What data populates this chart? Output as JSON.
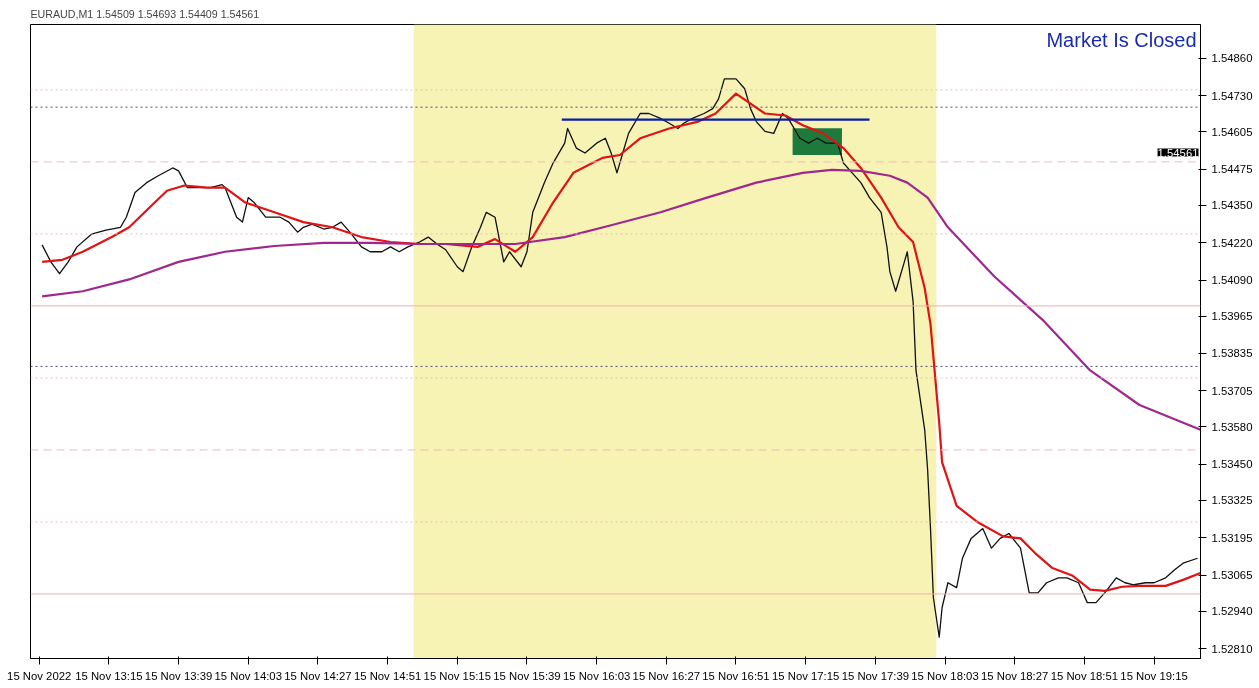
{
  "chart_data": {
    "type": "line",
    "title": "EURAUD,M1  1.54509 1.54693 1.54409 1.54561",
    "xlim": [
      "2022-11-15T12:48",
      "2022-11-15T19:31"
    ],
    "ylim": [
      1.52776,
      1.54977
    ],
    "xticks": [
      {
        "value": "2022-11-15T12:51",
        "label": "15 Nov 2022"
      },
      {
        "value": "2022-11-15T13:15",
        "label": "15 Nov 13:15"
      },
      {
        "value": "2022-11-15T13:39",
        "label": "15 Nov 13:39"
      },
      {
        "value": "2022-11-15T14:03",
        "label": "15 Nov 14:03"
      },
      {
        "value": "2022-11-15T14:27",
        "label": "15 Nov 14:27"
      },
      {
        "value": "2022-11-15T14:51",
        "label": "15 Nov 14:51"
      },
      {
        "value": "2022-11-15T15:15",
        "label": "15 Nov 15:15"
      },
      {
        "value": "2022-11-15T15:39",
        "label": "15 Nov 15:39"
      },
      {
        "value": "2022-11-15T16:03",
        "label": "15 Nov 16:03"
      },
      {
        "value": "2022-11-15T16:27",
        "label": "15 Nov 16:27"
      },
      {
        "value": "2022-11-15T16:51",
        "label": "15 Nov 16:51"
      },
      {
        "value": "2022-11-15T17:15",
        "label": "15 Nov 17:15"
      },
      {
        "value": "2022-11-15T17:39",
        "label": "15 Nov 17:39"
      },
      {
        "value": "2022-11-15T18:03",
        "label": "15 Nov 18:03"
      },
      {
        "value": "2022-11-15T18:27",
        "label": "15 Nov 18:27"
      },
      {
        "value": "2022-11-15T18:51",
        "label": "15 Nov 18:51"
      },
      {
        "value": "2022-11-15T19:15",
        "label": "15 Nov 19:15"
      }
    ],
    "yticks": [
      {
        "value": 1.5486,
        "label": "1.54860"
      },
      {
        "value": 1.5473,
        "label": "1.54730"
      },
      {
        "value": 1.54605,
        "label": "1.54605"
      },
      {
        "value": 1.54475,
        "label": "1.54475"
      },
      {
        "value": 1.5435,
        "label": "1.54350"
      },
      {
        "value": 1.5422,
        "label": "1.54220"
      },
      {
        "value": 1.5409,
        "label": "1.54090"
      },
      {
        "value": 1.53965,
        "label": "1.53965"
      },
      {
        "value": 1.53835,
        "label": "1.53835"
      },
      {
        "value": 1.53705,
        "label": "1.53705"
      },
      {
        "value": 1.5358,
        "label": "1.53580"
      },
      {
        "value": 1.5345,
        "label": "1.53450"
      },
      {
        "value": 1.53325,
        "label": "1.53325"
      },
      {
        "value": 1.53195,
        "label": "1.53195"
      },
      {
        "value": 1.53065,
        "label": "1.53065"
      },
      {
        "value": 1.5294,
        "label": "1.52940"
      },
      {
        "value": 1.5281,
        "label": "1.52810"
      }
    ],
    "grid": false,
    "marker": "none",
    "ref_lines": [
      {
        "axis": "y",
        "value": 1.5475,
        "color": "#e8bcbc",
        "line_style": "dotted"
      },
      {
        "axis": "y",
        "value": 1.5469,
        "color": "#50507a",
        "line_style": "dotted"
      },
      {
        "axis": "y",
        "value": 1.545,
        "color": "#f0bcbc",
        "line_style": "dashed"
      },
      {
        "axis": "y",
        "value": 1.5425,
        "color": "#e8bcbc",
        "line_style": "dotted"
      },
      {
        "axis": "y",
        "value": 1.54,
        "color": "#f0b0b0",
        "line_style": "solid"
      },
      {
        "axis": "y",
        "value": 1.5379,
        "color": "#50507a",
        "line_style": "dotted"
      },
      {
        "axis": "y",
        "value": 1.5375,
        "color": "#e8bcbc",
        "line_style": "dotted"
      },
      {
        "axis": "y",
        "value": 1.535,
        "color": "#f0bcbc",
        "line_style": "dashed"
      },
      {
        "axis": "y",
        "value": 1.5325,
        "color": "#e8bcbc",
        "line_style": "dotted"
      },
      {
        "axis": "y",
        "value": 1.53,
        "color": "#f0b0b0",
        "line_style": "solid"
      }
    ],
    "annotations": [
      "Market Is Closed",
      "1.54561"
    ],
    "bands": [
      {
        "axis": "x",
        "from": "2022-11-15T15:00",
        "to": "2022-11-15T18:00",
        "color": "#f7f3b5"
      }
    ],
    "series": [
      {
        "type": "bar",
        "color": "#1e7a3c",
        "x": [
          "2022-11-15T17:19"
        ],
        "base": [
          1.54524
        ],
        "values": [
          0.00093
        ]
      },
      {
        "color": "#101010",
        "x": [
          "2022-11-15T12:52",
          "2022-11-15T12:55",
          "2022-11-15T12:58",
          "2022-11-15T13:01",
          "2022-11-15T13:04",
          "2022-11-15T13:09",
          "2022-11-15T13:14",
          "2022-11-15T13:19",
          "2022-11-15T13:21",
          "2022-11-15T13:24",
          "2022-11-15T13:28",
          "2022-11-15T13:32",
          "2022-11-15T13:37",
          "2022-11-15T13:39",
          "2022-11-15T13:42",
          "2022-11-15T13:46",
          "2022-11-15T13:50",
          "2022-11-15T13:54",
          "2022-11-15T13:55",
          "2022-11-15T13:57",
          "2022-11-15T13:59",
          "2022-11-15T14:01",
          "2022-11-15T14:03",
          "2022-11-15T14:05",
          "2022-11-15T14:09",
          "2022-11-15T14:14",
          "2022-11-15T14:17",
          "2022-11-15T14:20",
          "2022-11-15T14:22",
          "2022-11-15T14:25",
          "2022-11-15T14:29",
          "2022-11-15T14:32",
          "2022-11-15T14:35",
          "2022-11-15T14:38",
          "2022-11-15T14:42",
          "2022-11-15T14:45",
          "2022-11-15T14:49",
          "2022-11-15T14:52",
          "2022-11-15T14:55",
          "2022-11-15T14:58",
          "2022-11-15T15:02",
          "2022-11-15T15:05",
          "2022-11-15T15:08",
          "2022-11-15T15:11",
          "2022-11-15T15:15",
          "2022-11-15T15:17",
          "2022-11-15T15:20",
          "2022-11-15T15:23",
          "2022-11-15T15:25",
          "2022-11-15T15:28",
          "2022-11-15T15:31",
          "2022-11-15T15:33",
          "2022-11-15T15:37",
          "2022-11-15T15:39",
          "2022-11-15T15:41",
          "2022-11-15T15:45",
          "2022-11-15T15:48",
          "2022-11-15T15:52",
          "2022-11-15T15:53",
          "2022-11-15T15:56",
          "2022-11-15T15:59",
          "2022-11-15T16:03",
          "2022-11-15T16:06",
          "2022-11-15T16:08",
          "2022-11-15T16:10",
          "2022-11-15T16:12",
          "2022-11-15T16:14",
          "2022-11-15T16:18",
          "2022-11-15T16:21",
          "2022-11-15T16:25",
          "2022-11-15T16:28",
          "2022-11-15T16:31",
          "2022-11-15T16:33",
          "2022-11-15T16:36",
          "2022-11-15T16:40",
          "2022-11-15T16:43",
          "2022-11-15T16:45",
          "2022-11-15T16:47",
          "2022-11-15T16:51",
          "2022-11-15T16:54",
          "2022-11-15T16:56",
          "2022-11-15T16:58",
          "2022-11-15T17:01",
          "2022-11-15T17:04",
          "2022-11-15T17:07",
          "2022-11-15T17:09",
          "2022-11-15T17:13",
          "2022-11-15T17:16",
          "2022-11-15T17:19",
          "2022-11-15T17:22",
          "2022-11-15T17:26",
          "2022-11-15T17:28",
          "2022-11-15T17:31",
          "2022-11-15T17:34",
          "2022-11-15T17:37",
          "2022-11-15T17:41",
          "2022-11-15T17:43",
          "2022-11-15T17:44",
          "2022-11-15T17:46",
          "2022-11-15T17:47",
          "2022-11-15T17:49",
          "2022-11-15T17:50",
          "2022-11-15T17:52",
          "2022-11-15T17:53",
          "2022-11-15T17:56",
          "2022-11-15T17:57",
          "2022-11-15T17:58",
          "2022-11-15T17:59",
          "2022-11-15T18:01",
          "2022-11-15T18:02",
          "2022-11-15T18:04",
          "2022-11-15T18:07",
          "2022-11-15T18:09",
          "2022-11-15T18:12",
          "2022-11-15T18:16",
          "2022-11-15T18:19",
          "2022-11-15T18:22",
          "2022-11-15T18:25",
          "2022-11-15T18:29",
          "2022-11-15T18:32",
          "2022-11-15T18:35",
          "2022-11-15T18:38",
          "2022-11-15T18:42",
          "2022-11-15T18:45",
          "2022-11-15T18:49",
          "2022-11-15T18:52",
          "2022-11-15T18:55",
          "2022-11-15T18:58",
          "2022-11-15T19:02",
          "2022-11-15T19:05",
          "2022-11-15T19:08",
          "2022-11-15T19:12",
          "2022-11-15T19:15",
          "2022-11-15T19:19",
          "2022-11-15T19:22",
          "2022-11-15T19:25",
          "2022-11-15T19:30"
        ],
        "values": [
          1.54212,
          1.54153,
          1.54112,
          1.54153,
          1.54205,
          1.54249,
          1.54263,
          1.54273,
          1.54308,
          1.54394,
          1.54428,
          1.54452,
          1.54479,
          1.54469,
          1.54411,
          1.54411,
          1.54411,
          1.54421,
          1.54411,
          1.54359,
          1.54308,
          1.54291,
          1.54376,
          1.54359,
          1.54308,
          1.54308,
          1.54291,
          1.54256,
          1.54273,
          1.54284,
          1.54267,
          1.54273,
          1.54291,
          1.54256,
          1.54205,
          1.54188,
          1.54188,
          1.54205,
          1.54188,
          1.54205,
          1.54222,
          1.54239,
          1.54215,
          1.54195,
          1.54136,
          1.54119,
          1.54205,
          1.54273,
          1.54325,
          1.54308,
          1.54153,
          1.54188,
          1.54136,
          1.54188,
          1.54325,
          1.54428,
          1.54496,
          1.54565,
          1.54616,
          1.54548,
          1.54531,
          1.54565,
          1.54582,
          1.54531,
          1.54462,
          1.54531,
          1.54599,
          1.54668,
          1.54668,
          1.54651,
          1.54634,
          1.54616,
          1.54634,
          1.54651,
          1.54668,
          1.54685,
          1.54719,
          1.54788,
          1.54788,
          1.54754,
          1.54685,
          1.5464,
          1.54606,
          1.54599,
          1.54668,
          1.54651,
          1.54582,
          1.54565,
          1.54582,
          1.54565,
          1.54565,
          1.54496,
          1.54462,
          1.54428,
          1.54376,
          1.54325,
          1.54205,
          1.54119,
          1.54051,
          1.54085,
          1.54153,
          1.54188,
          1.54016,
          1.53776,
          1.5357,
          1.53433,
          1.53227,
          1.52987,
          1.5285,
          1.52953,
          1.53039,
          1.53022,
          1.53124,
          1.53193,
          1.53227,
          1.53159,
          1.53193,
          1.5321,
          1.53159,
          1.53004,
          1.53004,
          1.53039,
          1.53056,
          1.53056,
          1.53039,
          1.5297,
          1.5297,
          1.53004,
          1.53056,
          1.53039,
          1.53032,
          1.53039,
          1.53039,
          1.53056,
          1.53083,
          1.53107,
          1.53124
        ]
      },
      {
        "color": "#e01414",
        "x": [
          "2022-11-15T12:52",
          "2022-11-15T12:59",
          "2022-11-15T13:06",
          "2022-11-15T13:16",
          "2022-11-15T13:22",
          "2022-11-15T13:29",
          "2022-11-15T13:35",
          "2022-11-15T13:41",
          "2022-11-15T13:49",
          "2022-11-15T13:55",
          "2022-11-15T14:02",
          "2022-11-15T14:12",
          "2022-11-15T14:22",
          "2022-11-15T14:32",
          "2022-11-15T14:42",
          "2022-11-15T14:52",
          "2022-11-15T15:02",
          "2022-11-15T15:11",
          "2022-11-15T15:22",
          "2022-11-15T15:28",
          "2022-11-15T15:35",
          "2022-11-15T15:41",
          "2022-11-15T15:48",
          "2022-11-15T15:55",
          "2022-11-15T16:05",
          "2022-11-15T16:11",
          "2022-11-15T16:18",
          "2022-11-15T16:28",
          "2022-11-15T16:38",
          "2022-11-15T16:44",
          "2022-11-15T16:51",
          "2022-11-15T16:55",
          "2022-11-15T17:01",
          "2022-11-15T17:08",
          "2022-11-15T17:14",
          "2022-11-15T17:21",
          "2022-11-15T17:28",
          "2022-11-15T17:34",
          "2022-11-15T17:41",
          "2022-11-15T17:47",
          "2022-11-15T17:52",
          "2022-11-15T17:56",
          "2022-11-15T17:58",
          "2022-11-15T18:01",
          "2022-11-15T18:02",
          "2022-11-15T18:07",
          "2022-11-15T18:14",
          "2022-11-15T18:23",
          "2022-11-15T18:29",
          "2022-11-15T18:34",
          "2022-11-15T18:40",
          "2022-11-15T18:47",
          "2022-11-15T18:53",
          "2022-11-15T18:58",
          "2022-11-15T19:04",
          "2022-11-15T19:10",
          "2022-11-15T19:19",
          "2022-11-15T19:25",
          "2022-11-15T19:31"
        ],
        "values": [
          1.54153,
          1.5416,
          1.54188,
          1.54239,
          1.54273,
          1.54342,
          1.544,
          1.54418,
          1.54411,
          1.54411,
          1.54359,
          1.54325,
          1.54291,
          1.54273,
          1.54239,
          1.54222,
          1.54215,
          1.54215,
          1.54205,
          1.54232,
          1.54188,
          1.54239,
          1.54359,
          1.54462,
          1.54514,
          1.54524,
          1.54582,
          1.54616,
          1.5464,
          1.54668,
          1.54737,
          1.54709,
          1.54668,
          1.54661,
          1.54627,
          1.54599,
          1.54548,
          1.54479,
          1.54376,
          1.54273,
          1.54222,
          1.54061,
          1.53937,
          1.53594,
          1.53457,
          1.53306,
          1.53251,
          1.532,
          1.53193,
          1.53142,
          1.5309,
          1.53063,
          1.53015,
          1.53011,
          1.53025,
          1.53028,
          1.53028,
          1.53049,
          1.53073
        ]
      },
      {
        "color": "#a0288c",
        "x": [
          "2022-11-15T12:52",
          "2022-11-15T13:06",
          "2022-11-15T13:22",
          "2022-11-15T13:39",
          "2022-11-15T13:55",
          "2022-11-15T14:12",
          "2022-11-15T14:29",
          "2022-11-15T14:45",
          "2022-11-15T15:02",
          "2022-11-15T15:18",
          "2022-11-15T15:35",
          "2022-11-15T15:52",
          "2022-11-15T16:08",
          "2022-11-15T16:25",
          "2022-11-15T16:41",
          "2022-11-15T16:58",
          "2022-11-15T17:14",
          "2022-11-15T17:24",
          "2022-11-15T17:34",
          "2022-11-15T17:44",
          "2022-11-15T17:50",
          "2022-11-15T17:57",
          "2022-11-15T18:04",
          "2022-11-15T18:20",
          "2022-11-15T18:37",
          "2022-11-15T18:53",
          "2022-11-15T19:10",
          "2022-11-15T19:31"
        ],
        "values": [
          1.54033,
          1.54051,
          1.54092,
          1.54153,
          1.54188,
          1.54208,
          1.54219,
          1.54219,
          1.54215,
          1.54215,
          1.54215,
          1.54239,
          1.5428,
          1.54325,
          1.54376,
          1.54428,
          1.54462,
          1.54472,
          1.54469,
          1.54452,
          1.54428,
          1.54376,
          1.54273,
          1.54102,
          1.53948,
          1.53776,
          1.53656,
          1.5357
        ]
      },
      {
        "color": "#0a1eaa",
        "x": [
          "2022-11-15T15:51",
          "2022-11-15T17:37"
        ],
        "values": [
          1.54647,
          1.54647
        ]
      }
    ]
  }
}
